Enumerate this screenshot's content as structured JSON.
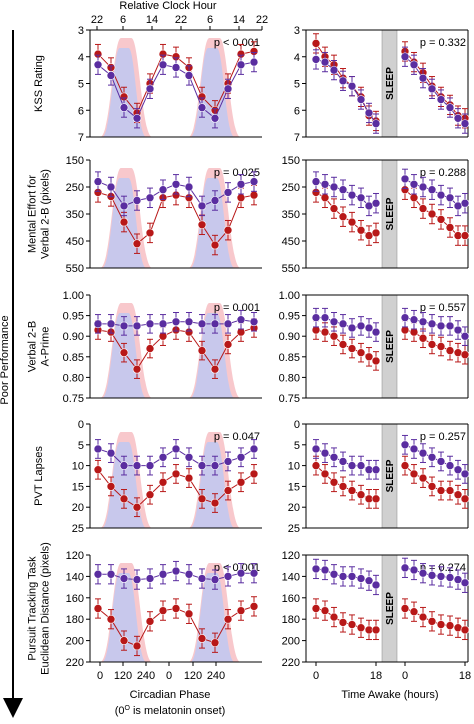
{
  "figure": {
    "top_axis_label": "Relative Clock Hour",
    "top_ticks": [
      "22",
      "6",
      "14",
      "22",
      "6",
      "14",
      "22"
    ],
    "side_label": "Poor Performance",
    "bottom_left_label": "Circadian Phase",
    "bottom_left_sub": "(0",
    "bottom_left_sup": "O",
    "bottom_left_sub_end": " is melatonin onset)",
    "bottom_right_label": "Time Awake (hours)",
    "left_x_ticks": [
      "0",
      "120",
      "240",
      "0",
      "120",
      "240"
    ],
    "right_x_ticks": [
      "0",
      "18",
      "0",
      "18"
    ],
    "sleep_label": "SLEEP",
    "colors": {
      "red": "#b81818",
      "purple": "#5a2da0",
      "pink_fill": "#f8c8cc",
      "blue_fill": "#c8c8ec",
      "sleep_bar": "#d0d0d0"
    }
  },
  "chart_data": [
    {
      "type": "line",
      "panel": "left",
      "row": 0,
      "ylabel": [
        "KSS Rating"
      ],
      "yticks": [
        "3",
        "4",
        "5",
        "6",
        "7"
      ],
      "ylim": [
        3,
        7
      ],
      "reversed": true,
      "pvalue": "p < 0.001",
      "x": [
        0,
        60,
        120,
        180,
        240,
        300,
        360,
        420,
        480,
        540,
        600,
        660,
        720
      ],
      "series": [
        {
          "color": "red",
          "values": [
            3.9,
            4.4,
            5.5,
            6.1,
            5.0,
            3.9,
            4.0,
            4.4,
            5.5,
            6.0,
            5.0,
            3.9,
            3.8
          ]
        },
        {
          "color": "purple",
          "values": [
            4.3,
            4.7,
            5.9,
            6.3,
            5.2,
            4.3,
            4.4,
            4.7,
            5.9,
            6.3,
            5.2,
            4.3,
            4.2
          ]
        }
      ]
    },
    {
      "type": "line",
      "panel": "right",
      "row": 0,
      "yticks": [
        "3",
        "4",
        "5",
        "6",
        "7"
      ],
      "ylim": [
        3,
        7
      ],
      "reversed": true,
      "pvalue": "p = 0.332",
      "series": [
        {
          "color": "red",
          "segments": [
            [
              3.5,
              4.0,
              4.3,
              4.8,
              5.1,
              5.5,
              6.2,
              6.4
            ],
            [
              3.8,
              4.2,
              4.6,
              5.1,
              5.5,
              5.8,
              6.2,
              6.3
            ]
          ]
        },
        {
          "color": "purple",
          "segments": [
            [
              4.1,
              4.2,
              4.5,
              4.9,
              5.1,
              5.6,
              6.1,
              6.5
            ],
            [
              4.0,
              4.3,
              4.8,
              5.2,
              5.6,
              5.9,
              6.3,
              6.5
            ]
          ]
        }
      ]
    },
    {
      "type": "line",
      "panel": "left",
      "row": 1,
      "ylabel": [
        "Mental Effort for",
        "Verbal 2-B (pixels)"
      ],
      "yticks": [
        "150",
        "250",
        "350",
        "450",
        "550"
      ],
      "ylim": [
        150,
        550
      ],
      "reversed": true,
      "pvalue": "p = 0.025",
      "x": [
        0,
        60,
        120,
        180,
        240,
        300,
        360,
        420,
        480,
        540,
        600,
        660,
        720
      ],
      "series": [
        {
          "color": "red",
          "values": [
            270,
            285,
            380,
            460,
            420,
            290,
            280,
            290,
            390,
            465,
            410,
            290,
            280
          ]
        },
        {
          "color": "purple",
          "values": [
            230,
            250,
            320,
            300,
            290,
            260,
            240,
            250,
            320,
            300,
            270,
            240,
            230
          ]
        }
      ]
    },
    {
      "type": "line",
      "panel": "right",
      "row": 1,
      "yticks": [
        "150",
        "250",
        "350",
        "450",
        "550"
      ],
      "ylim": [
        150,
        550
      ],
      "reversed": true,
      "pvalue": "p = 0.288",
      "series": [
        {
          "color": "red",
          "segments": [
            [
              270,
              290,
              330,
              360,
              380,
              410,
              430,
              420
            ],
            [
              260,
              290,
              330,
              350,
              370,
              400,
              430,
              430
            ]
          ]
        },
        {
          "color": "purple",
          "segments": [
            [
              230,
              240,
              250,
              260,
              280,
              290,
              320,
              310
            ],
            [
              220,
              240,
              250,
              260,
              280,
              290,
              320,
              310
            ]
          ]
        }
      ]
    },
    {
      "type": "line",
      "panel": "left",
      "row": 2,
      "ylabel": [
        "Verbal 2-B",
        "A-Prime"
      ],
      "yticks": [
        "1.00",
        "0.95",
        "0.90",
        "0.85",
        "0.80",
        "0.75"
      ],
      "ylim": [
        1.0,
        0.75
      ],
      "reversed": false,
      "pvalue": "p = 0.001",
      "x": [
        0,
        60,
        120,
        180,
        240,
        300,
        360,
        420,
        480,
        540,
        600,
        660,
        720
      ],
      "series": [
        {
          "color": "red",
          "values": [
            0.915,
            0.91,
            0.86,
            0.82,
            0.87,
            0.9,
            0.915,
            0.91,
            0.865,
            0.82,
            0.88,
            0.91,
            0.92
          ]
        },
        {
          "color": "purple",
          "values": [
            0.93,
            0.93,
            0.925,
            0.925,
            0.93,
            0.93,
            0.935,
            0.935,
            0.93,
            0.93,
            0.93,
            0.94,
            0.935
          ]
        }
      ]
    },
    {
      "type": "line",
      "panel": "right",
      "row": 2,
      "yticks": [
        "1.00",
        "0.95",
        "0.90",
        "0.85",
        "0.80",
        "0.75"
      ],
      "ylim": [
        1.0,
        0.75
      ],
      "reversed": false,
      "pvalue": "p = 0.557",
      "series": [
        {
          "color": "red",
          "segments": [
            [
              0.915,
              0.91,
              0.9,
              0.88,
              0.87,
              0.86,
              0.85,
              0.84
            ],
            [
              0.915,
              0.91,
              0.895,
              0.88,
              0.875,
              0.865,
              0.86,
              0.855
            ]
          ]
        },
        {
          "color": "purple",
          "segments": [
            [
              0.945,
              0.945,
              0.935,
              0.93,
              0.92,
              0.925,
              0.92,
              0.91
            ],
            [
              0.945,
              0.94,
              0.935,
              0.93,
              0.925,
              0.925,
              0.915,
              0.9
            ]
          ]
        }
      ]
    },
    {
      "type": "line",
      "panel": "left",
      "row": 3,
      "ylabel": [
        "PVT Lapses"
      ],
      "yticks": [
        "0",
        "5",
        "10",
        "15",
        "20",
        "25"
      ],
      "ylim": [
        0,
        25
      ],
      "reversed": true,
      "pvalue": "p = 0.047",
      "x": [
        0,
        60,
        120,
        180,
        240,
        300,
        360,
        420,
        480,
        540,
        600,
        660,
        720
      ],
      "series": [
        {
          "color": "red",
          "values": [
            11,
            15,
            18,
            20,
            17,
            14,
            12,
            13,
            18,
            19,
            16,
            14,
            12
          ]
        },
        {
          "color": "purple",
          "values": [
            6,
            7,
            10,
            10,
            10,
            8,
            6,
            8,
            10,
            10,
            9,
            8,
            6
          ]
        }
      ]
    },
    {
      "type": "line",
      "panel": "right",
      "row": 3,
      "yticks": [
        "0",
        "5",
        "10",
        "15",
        "20",
        "25"
      ],
      "ylim": [
        0,
        25
      ],
      "reversed": true,
      "pvalue": "p = 0.257",
      "series": [
        {
          "color": "red",
          "segments": [
            [
              10,
              12,
              14,
              15,
              16,
              17,
              18,
              18
            ],
            [
              10,
              12,
              13,
              15,
              16,
              16,
              17,
              18
            ]
          ]
        },
        {
          "color": "purple",
          "segments": [
            [
              6,
              7,
              8,
              9,
              10,
              10,
              11,
              11
            ],
            [
              5,
              6,
              7,
              8,
              9,
              10,
              11,
              12
            ]
          ]
        }
      ]
    },
    {
      "type": "line",
      "panel": "left",
      "row": 4,
      "ylabel": [
        "Pursuit Tracking Task",
        "Euclidean Distance (pixels)"
      ],
      "yticks": [
        "120",
        "140",
        "160",
        "180",
        "200",
        "220"
      ],
      "ylim": [
        120,
        220
      ],
      "reversed": true,
      "pvalue": "p < 0.001",
      "x": [
        0,
        60,
        120,
        180,
        240,
        300,
        360,
        420,
        480,
        540,
        600,
        660,
        720
      ],
      "series": [
        {
          "color": "red",
          "values": [
            170,
            180,
            200,
            205,
            182,
            172,
            170,
            175,
            198,
            202,
            180,
            172,
            168
          ]
        },
        {
          "color": "purple",
          "values": [
            138,
            138,
            142,
            143,
            142,
            138,
            135,
            138,
            142,
            143,
            140,
            137,
            137
          ]
        }
      ]
    },
    {
      "type": "line",
      "panel": "right",
      "row": 4,
      "yticks": [
        "120",
        "140",
        "160",
        "180",
        "200",
        "220"
      ],
      "ylim": [
        120,
        220
      ],
      "reversed": true,
      "pvalue": "p = 0.274",
      "series": [
        {
          "color": "red",
          "segments": [
            [
              170,
              172,
              178,
              183,
              185,
              188,
              190,
              190
            ],
            [
              170,
              173,
              178,
              182,
              185,
              186,
              188,
              190
            ]
          ]
        },
        {
          "color": "purple",
          "segments": [
            [
              133,
              134,
              138,
              140,
              140,
              142,
              144,
              148
            ],
            [
              132,
              134,
              137,
              139,
              140,
              141,
              143,
              146
            ]
          ]
        }
      ]
    }
  ]
}
